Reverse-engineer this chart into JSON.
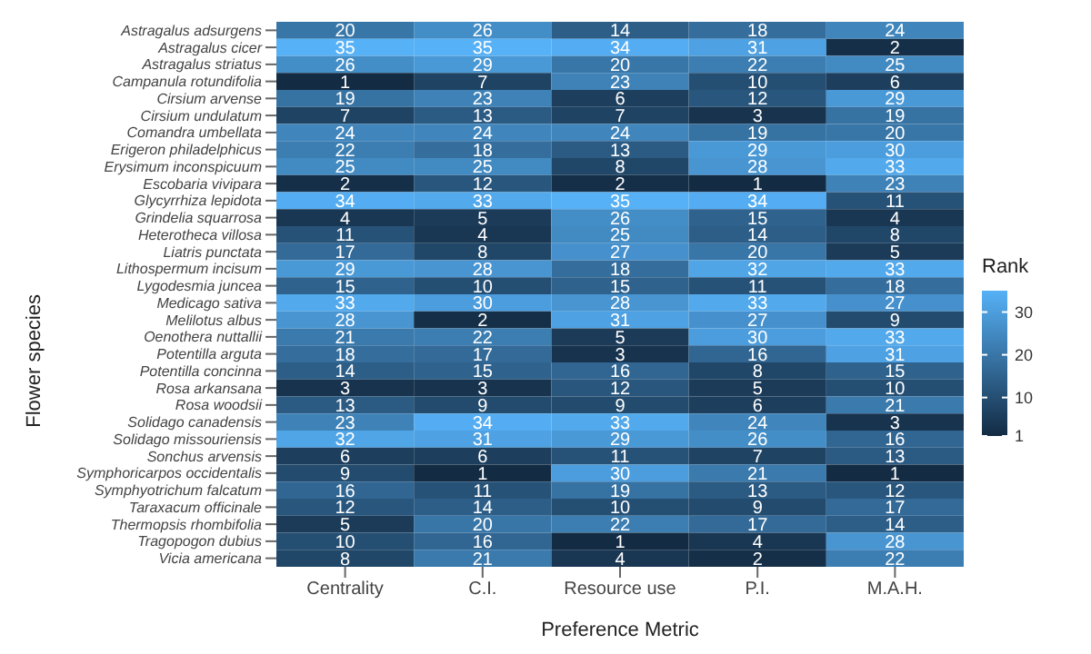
{
  "chart_data": {
    "type": "heatmap",
    "xlabel": "Preference Metric",
    "ylabel": "Flower species",
    "clabel": "Rank",
    "categories": [
      "Centrality",
      "C.I.",
      "Resource use",
      "P.I.",
      "M.A.H."
    ],
    "y_categories": [
      "Astragalus adsurgens",
      "Astragalus cicer",
      "Astragalus striatus",
      "Campanula rotundifolia",
      "Cirsium arvense",
      "Cirsium undulatum",
      "Comandra umbellata",
      "Erigeron philadelphicus",
      "Erysimum inconspicuum",
      "Escobaria vivipara",
      "Glycyrrhiza lepidota",
      "Grindelia squarrosa",
      "Heterotheca villosa",
      "Liatris punctata",
      "Lithospermum incisum",
      "Lygodesmia juncea",
      "Medicago sativa",
      "Melilotus albus",
      "Oenothera nuttallii",
      "Potentilla arguta",
      "Potentilla concinna",
      "Rosa arkansana",
      "Rosa woodsii",
      "Solidago canadensis",
      "Solidago missouriensis",
      "Sonchus arvensis",
      "Symphoricarpos occidentalis",
      "Symphyotrichum falcatum",
      "Taraxacum officinale",
      "Thermopsis rhombifolia",
      "Tragopogon dubius",
      "Vicia americana"
    ],
    "cells": [
      [
        20,
        26,
        14,
        18,
        24
      ],
      [
        35,
        35,
        34,
        31,
        2
      ],
      [
        26,
        29,
        20,
        22,
        25
      ],
      [
        1,
        7,
        23,
        10,
        6
      ],
      [
        19,
        23,
        6,
        12,
        29
      ],
      [
        7,
        13,
        7,
        3,
        19
      ],
      [
        24,
        24,
        24,
        19,
        20
      ],
      [
        22,
        18,
        13,
        29,
        30
      ],
      [
        25,
        25,
        8,
        28,
        33
      ],
      [
        2,
        12,
        2,
        1,
        23
      ],
      [
        34,
        33,
        35,
        34,
        11
      ],
      [
        4,
        5,
        26,
        15,
        4
      ],
      [
        11,
        4,
        25,
        14,
        8
      ],
      [
        17,
        8,
        27,
        20,
        5
      ],
      [
        29,
        28,
        18,
        32,
        33
      ],
      [
        15,
        10,
        15,
        11,
        18
      ],
      [
        33,
        30,
        28,
        33,
        27
      ],
      [
        28,
        2,
        31,
        27,
        9
      ],
      [
        21,
        22,
        5,
        30,
        33
      ],
      [
        18,
        17,
        3,
        16,
        31
      ],
      [
        14,
        15,
        16,
        8,
        15
      ],
      [
        3,
        3,
        12,
        5,
        10
      ],
      [
        13,
        9,
        9,
        6,
        21
      ],
      [
        23,
        34,
        33,
        24,
        3
      ],
      [
        32,
        31,
        29,
        26,
        16
      ],
      [
        6,
        6,
        11,
        7,
        13
      ],
      [
        9,
        1,
        30,
        21,
        1
      ],
      [
        16,
        11,
        19,
        13,
        12
      ],
      [
        12,
        14,
        10,
        9,
        17
      ],
      [
        5,
        20,
        22,
        17,
        14
      ],
      [
        10,
        16,
        1,
        4,
        28
      ],
      [
        8,
        21,
        4,
        2,
        22
      ]
    ],
    "clim": [
      1,
      35
    ],
    "cticks": [
      1,
      10,
      20,
      30
    ],
    "data_labels": true
  }
}
